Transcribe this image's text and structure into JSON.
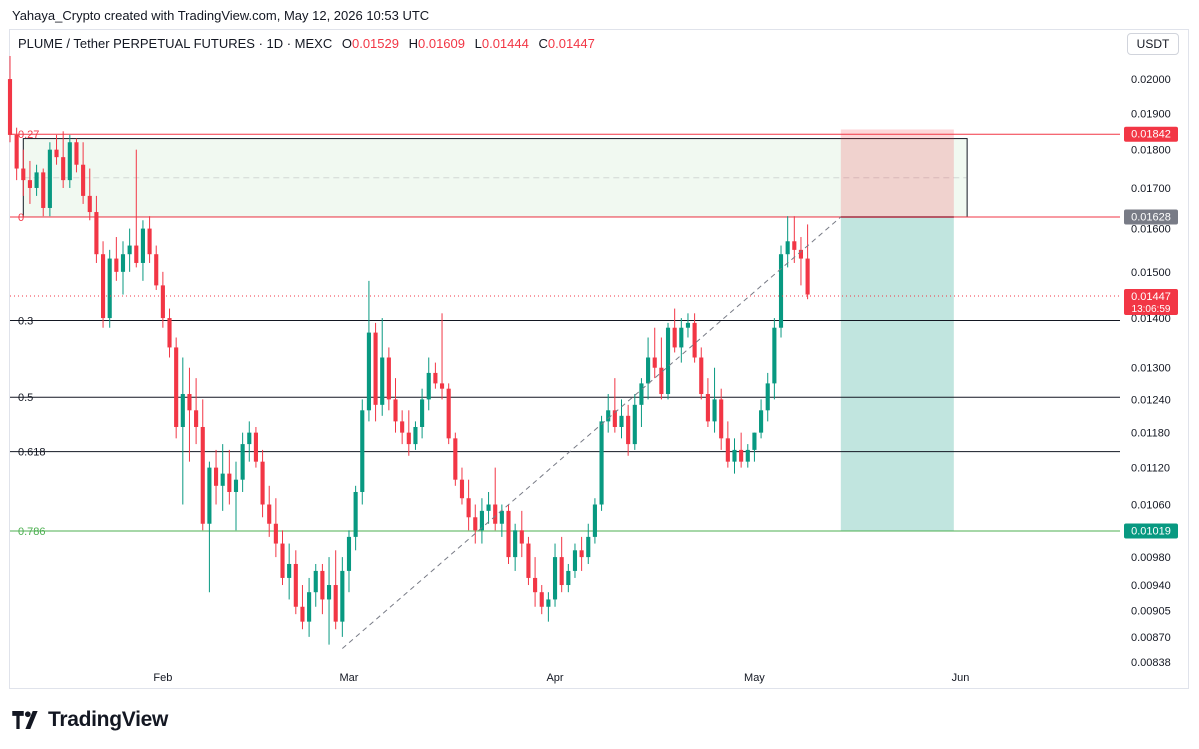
{
  "caption": "Yahaya_Crypto created with TradingView.com, May 12, 2026 10:53 UTC",
  "legend": {
    "symbol": "PLUME / Tether PERPETUAL FUTURES · 1D · MEXC",
    "o_label": "O",
    "o": "0.01529",
    "h_label": "H",
    "h": "0.01609",
    "l_label": "L",
    "l": "0.01444",
    "c_label": "C",
    "c": "0.01447"
  },
  "currency": "USDT",
  "brand": "TradingView",
  "colors": {
    "up": "#089981",
    "down": "#f23645",
    "line": "#131722",
    "green_level": "#4caf50"
  },
  "chart_data": {
    "type": "candlestick",
    "scale": "log",
    "ylim": [
      0.00838,
      0.0207
    ],
    "y_ticks": [
      "0.02000",
      "0.01900",
      "0.01800",
      "0.01700",
      "0.01600",
      "0.01500",
      "0.01400",
      "0.01300",
      "0.01240",
      "0.01180",
      "0.01120",
      "0.01060",
      "0.01019",
      "0.00980",
      "0.00940",
      "0.00905",
      "0.00870",
      "0.00838"
    ],
    "x_labels": [
      "Feb",
      "Mar",
      "Apr",
      "May",
      "Jun"
    ],
    "x_label_dates": [
      "2026-02-01",
      "2026-03-01",
      "2026-04-01",
      "2026-05-01",
      "2026-06-01"
    ],
    "date_range": [
      "2026-01-09",
      "2026-06-25"
    ],
    "first_candle_date": "2026-01-09",
    "fib_levels": [
      {
        "label": "0.27",
        "price": 0.01842,
        "color": "#f23645"
      },
      {
        "label": "0",
        "price": 0.01628,
        "color": "#f23645"
      },
      {
        "label": "0.3",
        "price": 0.01395,
        "color": "#131722"
      },
      {
        "label": "0.5",
        "price": 0.01244,
        "color": "#131722"
      },
      {
        "label": "0.618",
        "price": 0.01147,
        "color": "#131722"
      },
      {
        "label": "0.786",
        "price": 0.01019,
        "color": "#4caf50"
      }
    ],
    "price_badges": [
      {
        "text": "0.01842",
        "price": 0.01842,
        "color": "#f23645"
      },
      {
        "text": "0.01628",
        "price": 0.01628,
        "color": "#787b86"
      },
      {
        "text": "0.01447",
        "sub": "13:06:59",
        "price": 0.01447,
        "color": "#f23645"
      },
      {
        "text": "0.01019",
        "price": 0.01019,
        "color": "#089981"
      }
    ],
    "current_price": 0.01447,
    "zone_box": {
      "start": "2026-01-11",
      "end": "2026-06-02",
      "top": 0.0183,
      "bottom": 0.01628
    },
    "position": {
      "start": "2026-05-14",
      "end": "2026-05-31",
      "entry": 0.01628,
      "stop": 0.01855,
      "target": 0.01019
    },
    "trendline": {
      "from": [
        "2026-02-28",
        0.00855
      ],
      "to": [
        "2026-05-14",
        0.01628
      ]
    },
    "candles": [
      [
        0.02,
        0.0207,
        0.0182,
        0.0184
      ],
      [
        0.0184,
        0.0186,
        0.0172,
        0.0175
      ],
      [
        0.0175,
        0.018,
        0.0168,
        0.0172
      ],
      [
        0.0172,
        0.0177,
        0.0166,
        0.017
      ],
      [
        0.017,
        0.0176,
        0.0168,
        0.0174
      ],
      [
        0.0174,
        0.0175,
        0.0163,
        0.0165
      ],
      [
        0.0165,
        0.0182,
        0.0163,
        0.018
      ],
      [
        0.018,
        0.0184,
        0.0176,
        0.0178
      ],
      [
        0.0178,
        0.0185,
        0.017,
        0.0172
      ],
      [
        0.0172,
        0.0184,
        0.017,
        0.0182
      ],
      [
        0.0182,
        0.0183,
        0.0174,
        0.0176
      ],
      [
        0.0176,
        0.0182,
        0.0166,
        0.0168
      ],
      [
        0.0168,
        0.0175,
        0.0162,
        0.0164
      ],
      [
        0.0164,
        0.0168,
        0.0152,
        0.0154
      ],
      [
        0.0154,
        0.0157,
        0.0138,
        0.014
      ],
      [
        0.014,
        0.0155,
        0.0138,
        0.0153
      ],
      [
        0.0153,
        0.0158,
        0.0148,
        0.015
      ],
      [
        0.015,
        0.0157,
        0.0145,
        0.0154
      ],
      [
        0.0154,
        0.016,
        0.015,
        0.0156
      ],
      [
        0.0156,
        0.018,
        0.0151,
        0.0152
      ],
      [
        0.0152,
        0.0162,
        0.0148,
        0.016
      ],
      [
        0.016,
        0.0163,
        0.0152,
        0.0154
      ],
      [
        0.0154,
        0.0156,
        0.0146,
        0.0147
      ],
      [
        0.0147,
        0.015,
        0.0138,
        0.014
      ],
      [
        0.014,
        0.0142,
        0.0132,
        0.0134
      ],
      [
        0.0134,
        0.0136,
        0.0117,
        0.0119
      ],
      [
        0.0119,
        0.0132,
        0.0106,
        0.0125
      ],
      [
        0.0125,
        0.013,
        0.0113,
        0.0122
      ],
      [
        0.0122,
        0.0128,
        0.0116,
        0.0119
      ],
      [
        0.0119,
        0.0124,
        0.0102,
        0.0103
      ],
      [
        0.0103,
        0.0113,
        0.0093,
        0.0112
      ],
      [
        0.0112,
        0.0115,
        0.0106,
        0.0109
      ],
      [
        0.0109,
        0.0116,
        0.0105,
        0.0111
      ],
      [
        0.0111,
        0.0115,
        0.0106,
        0.0108
      ],
      [
        0.0108,
        0.0113,
        0.0102,
        0.011
      ],
      [
        0.011,
        0.0118,
        0.0108,
        0.0116
      ],
      [
        0.0116,
        0.012,
        0.0113,
        0.0118
      ],
      [
        0.0118,
        0.0119,
        0.0112,
        0.0113
      ],
      [
        0.0113,
        0.0115,
        0.0104,
        0.0106
      ],
      [
        0.0106,
        0.0109,
        0.0101,
        0.0103
      ],
      [
        0.0103,
        0.0107,
        0.0098,
        0.01
      ],
      [
        0.01,
        0.0102,
        0.0094,
        0.0095
      ],
      [
        0.0095,
        0.01,
        0.0092,
        0.0097
      ],
      [
        0.0097,
        0.0099,
        0.009,
        0.0091
      ],
      [
        0.0091,
        0.0094,
        0.0088,
        0.0089
      ],
      [
        0.0089,
        0.0095,
        0.0087,
        0.0093
      ],
      [
        0.0093,
        0.0097,
        0.0091,
        0.0096
      ],
      [
        0.0096,
        0.0097,
        0.009,
        0.0092
      ],
      [
        0.0092,
        0.0098,
        0.0086,
        0.0094
      ],
      [
        0.0094,
        0.0099,
        0.0088,
        0.0089
      ],
      [
        0.0089,
        0.0098,
        0.0087,
        0.0096
      ],
      [
        0.0096,
        0.0102,
        0.0093,
        0.0101
      ],
      [
        0.0101,
        0.0109,
        0.0099,
        0.0108
      ],
      [
        0.0108,
        0.0124,
        0.0106,
        0.0122
      ],
      [
        0.0122,
        0.0148,
        0.012,
        0.0137
      ],
      [
        0.0137,
        0.0139,
        0.012,
        0.0123
      ],
      [
        0.0123,
        0.014,
        0.0121,
        0.0132
      ],
      [
        0.0132,
        0.0134,
        0.0122,
        0.0124
      ],
      [
        0.0124,
        0.0128,
        0.0118,
        0.012
      ],
      [
        0.012,
        0.0122,
        0.0116,
        0.0118
      ],
      [
        0.0118,
        0.0122,
        0.0114,
        0.0116
      ],
      [
        0.0116,
        0.012,
        0.0115,
        0.0119
      ],
      [
        0.0119,
        0.0126,
        0.0117,
        0.0124
      ],
      [
        0.0124,
        0.0132,
        0.0122,
        0.0129
      ],
      [
        0.0129,
        0.0131,
        0.0126,
        0.0127
      ],
      [
        0.0127,
        0.0141,
        0.0124,
        0.0126
      ],
      [
        0.0126,
        0.0127,
        0.0116,
        0.0117
      ],
      [
        0.0117,
        0.0118,
        0.0109,
        0.011
      ],
      [
        0.011,
        0.0112,
        0.0106,
        0.0107
      ],
      [
        0.0107,
        0.011,
        0.0102,
        0.0104
      ],
      [
        0.0104,
        0.0106,
        0.01,
        0.0102
      ],
      [
        0.0102,
        0.0107,
        0.01,
        0.0105
      ],
      [
        0.0105,
        0.0108,
        0.0103,
        0.0106
      ],
      [
        0.0106,
        0.0112,
        0.0102,
        0.0103
      ],
      [
        0.0103,
        0.0106,
        0.0101,
        0.0105
      ],
      [
        0.0105,
        0.0106,
        0.0097,
        0.0098
      ],
      [
        0.0098,
        0.0103,
        0.0096,
        0.0102
      ],
      [
        0.0102,
        0.0105,
        0.0098,
        0.01
      ],
      [
        0.01,
        0.0101,
        0.0094,
        0.0095
      ],
      [
        0.0095,
        0.0098,
        0.0091,
        0.0093
      ],
      [
        0.0093,
        0.0094,
        0.009,
        0.0091
      ],
      [
        0.0091,
        0.0093,
        0.0089,
        0.0092
      ],
      [
        0.0092,
        0.01,
        0.0091,
        0.0098
      ],
      [
        0.0098,
        0.0101,
        0.0093,
        0.0094
      ],
      [
        0.0094,
        0.0097,
        0.0093,
        0.0096
      ],
      [
        0.0096,
        0.01,
        0.0095,
        0.0099
      ],
      [
        0.0099,
        0.0101,
        0.0096,
        0.0098
      ],
      [
        0.0098,
        0.0103,
        0.0097,
        0.0101
      ],
      [
        0.0101,
        0.0107,
        0.01,
        0.0106
      ],
      [
        0.0106,
        0.0121,
        0.0105,
        0.012
      ],
      [
        0.012,
        0.0125,
        0.0118,
        0.0122
      ],
      [
        0.0122,
        0.0128,
        0.0118,
        0.0119
      ],
      [
        0.0119,
        0.0124,
        0.0117,
        0.0121
      ],
      [
        0.0121,
        0.0123,
        0.0114,
        0.0116
      ],
      [
        0.0116,
        0.0125,
        0.0115,
        0.0123
      ],
      [
        0.0123,
        0.0128,
        0.0119,
        0.0127
      ],
      [
        0.0127,
        0.0136,
        0.0124,
        0.0132
      ],
      [
        0.0132,
        0.0138,
        0.0128,
        0.013
      ],
      [
        0.013,
        0.0136,
        0.0124,
        0.0125
      ],
      [
        0.0125,
        0.0139,
        0.0124,
        0.0138
      ],
      [
        0.0138,
        0.0142,
        0.0133,
        0.0134
      ],
      [
        0.0134,
        0.014,
        0.0131,
        0.0138
      ],
      [
        0.0138,
        0.0141,
        0.0136,
        0.0139
      ],
      [
        0.0139,
        0.0141,
        0.0131,
        0.0132
      ],
      [
        0.0132,
        0.0134,
        0.0124,
        0.0125
      ],
      [
        0.0125,
        0.0128,
        0.0119,
        0.012
      ],
      [
        0.012,
        0.013,
        0.0118,
        0.0124
      ],
      [
        0.0124,
        0.0126,
        0.0115,
        0.0117
      ],
      [
        0.0117,
        0.012,
        0.0112,
        0.0113
      ],
      [
        0.0113,
        0.0117,
        0.0111,
        0.0115
      ],
      [
        0.0115,
        0.0118,
        0.0112,
        0.0113
      ],
      [
        0.0113,
        0.0116,
        0.0112,
        0.0115
      ],
      [
        0.0115,
        0.0118,
        0.0113,
        0.0118
      ],
      [
        0.0118,
        0.0124,
        0.0117,
        0.0122
      ],
      [
        0.0122,
        0.0129,
        0.012,
        0.0127
      ],
      [
        0.0127,
        0.014,
        0.0124,
        0.0138
      ],
      [
        0.0138,
        0.0156,
        0.0136,
        0.0154
      ],
      [
        0.0154,
        0.0163,
        0.0151,
        0.0157
      ],
      [
        0.0157,
        0.0163,
        0.0152,
        0.0155
      ],
      [
        0.0155,
        0.0158,
        0.0147,
        0.0153
      ],
      [
        0.0153,
        0.0161,
        0.0144,
        0.0145
      ]
    ]
  }
}
